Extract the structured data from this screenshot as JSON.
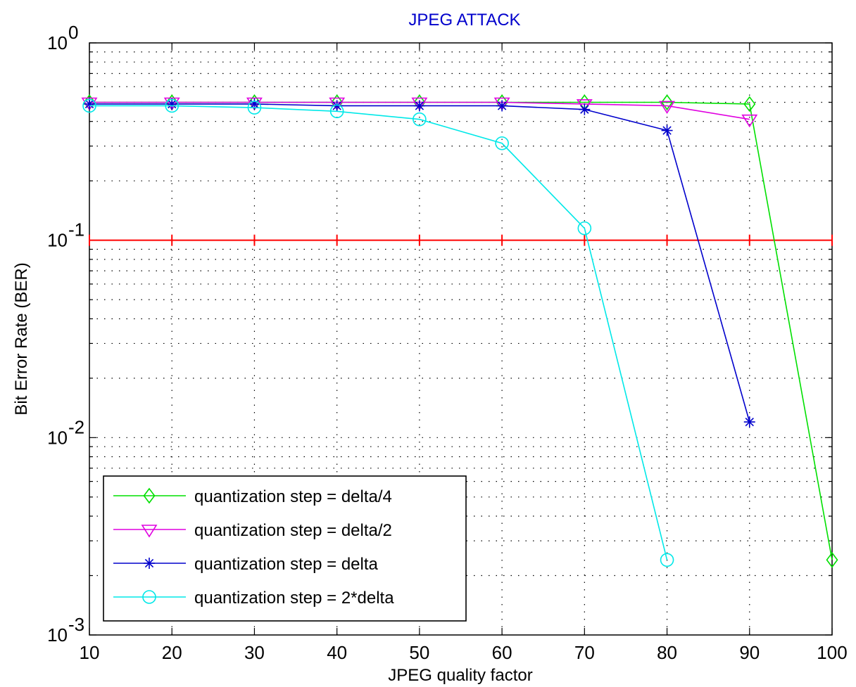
{
  "chart_data": {
    "type": "line",
    "title": "JPEG ATTACK",
    "title_color": "#0000cc",
    "xlabel": "JPEG quality factor",
    "ylabel": "Bit Error Rate (BER)",
    "x": [
      10,
      20,
      30,
      40,
      50,
      60,
      70,
      80,
      90,
      100
    ],
    "xlim": [
      10,
      100
    ],
    "ylim": [
      0.001,
      1
    ],
    "yscale": "log",
    "x_ticks": [
      "10",
      "20",
      "30",
      "40",
      "50",
      "60",
      "70",
      "80",
      "90",
      "100"
    ],
    "y_ticks": [
      {
        "base": "10",
        "exp": "0",
        "value": 1
      },
      {
        "base": "10",
        "exp": "-1",
        "value": 0.1
      },
      {
        "base": "10",
        "exp": "-2",
        "value": 0.01
      },
      {
        "base": "10",
        "exp": "-3",
        "value": 0.001
      }
    ],
    "grid": true,
    "legend_position": "bottom-left",
    "threshold": {
      "value": 0.1,
      "color": "#ff0000"
    },
    "series": [
      {
        "name": "quantization step = delta/4",
        "color": "#00e000",
        "marker": "diamond",
        "values": [
          0.5,
          0.5,
          0.5,
          0.5,
          0.5,
          0.5,
          0.5,
          0.5,
          0.49,
          0.0024
        ]
      },
      {
        "name": "quantization step = delta/2",
        "color": "#e000e0",
        "marker": "triangle-down",
        "values": [
          0.5,
          0.5,
          0.5,
          0.5,
          0.5,
          0.5,
          0.49,
          0.48,
          0.41,
          null
        ]
      },
      {
        "name": "quantization step = delta",
        "color": "#0000cc",
        "marker": "star",
        "values": [
          0.49,
          0.49,
          0.49,
          0.48,
          0.48,
          0.48,
          0.46,
          0.36,
          0.012,
          null
        ]
      },
      {
        "name": "quantization step = 2*delta",
        "color": "#00e8e8",
        "marker": "circle",
        "values": [
          0.48,
          0.48,
          0.47,
          0.45,
          0.41,
          0.31,
          0.115,
          0.0024,
          null,
          null
        ]
      }
    ]
  }
}
